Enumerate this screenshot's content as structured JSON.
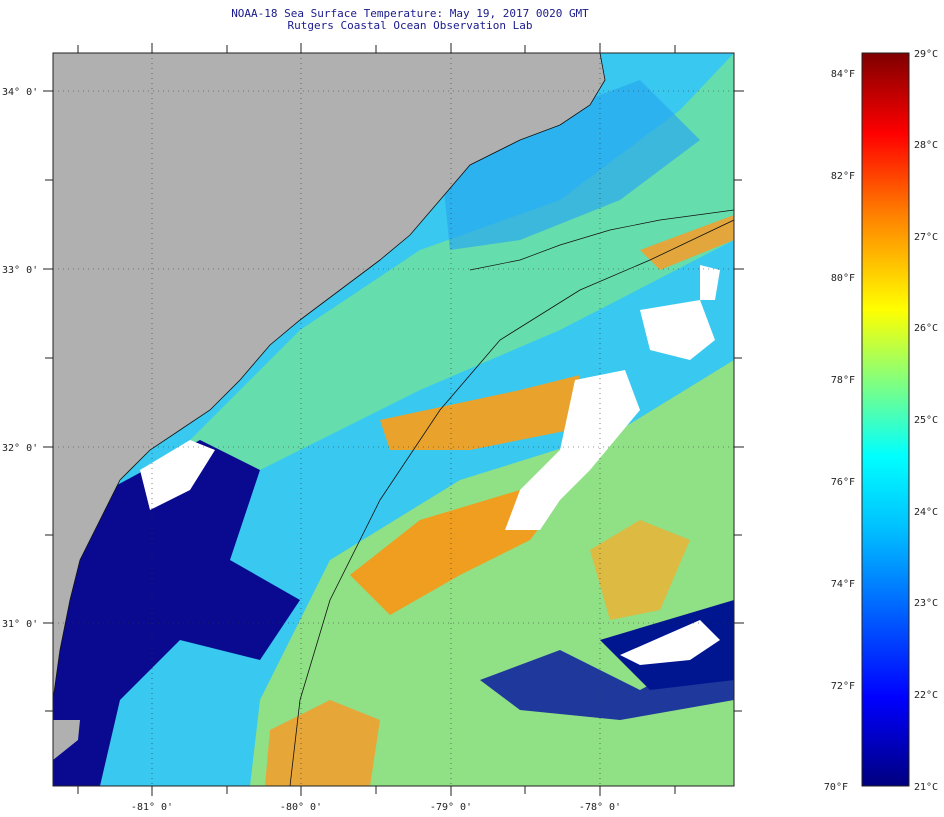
{
  "title": "NOAA-18 Sea Surface Temperature:  May 19, 2017 0020 GMT",
  "subtitle": "Rutgers Coastal Ocean Observation Lab",
  "map": {
    "lat_labels": [
      "34° 0'",
      "33° 0'",
      "32° 0'",
      "31° 0'"
    ],
    "lon_labels": [
      "-81° 0'",
      "-80° 0'",
      "-79° 0'",
      "-78° 0'"
    ],
    "lat_values": [
      34,
      33,
      32,
      31
    ],
    "lon_values": [
      -81,
      -80,
      -79,
      -78
    ],
    "land_color": "#b0b0b0",
    "cloud_color": "#ffffff"
  },
  "colorbar": {
    "fahrenheit_labels": [
      "84°F",
      "82°F",
      "80°F",
      "78°F",
      "76°F",
      "74°F",
      "72°F",
      "70°F"
    ],
    "celsius_labels": [
      "29°C",
      "28°C",
      "27°C",
      "26°C",
      "25°C",
      "24°C",
      "23°C",
      "22°C",
      "21°C"
    ],
    "celsius_min": 21,
    "celsius_max": 29,
    "fahrenheit_values": [
      84,
      82,
      80,
      78,
      76,
      74,
      72,
      70
    ],
    "celsius_values": [
      29,
      28,
      27,
      26,
      25,
      24,
      23,
      22,
      21
    ],
    "colors": [
      "#00007f",
      "#0000ff",
      "#0080ff",
      "#00ffff",
      "#80ff80",
      "#ffff00",
      "#ff8000",
      "#ff0000",
      "#7f0000"
    ]
  }
}
